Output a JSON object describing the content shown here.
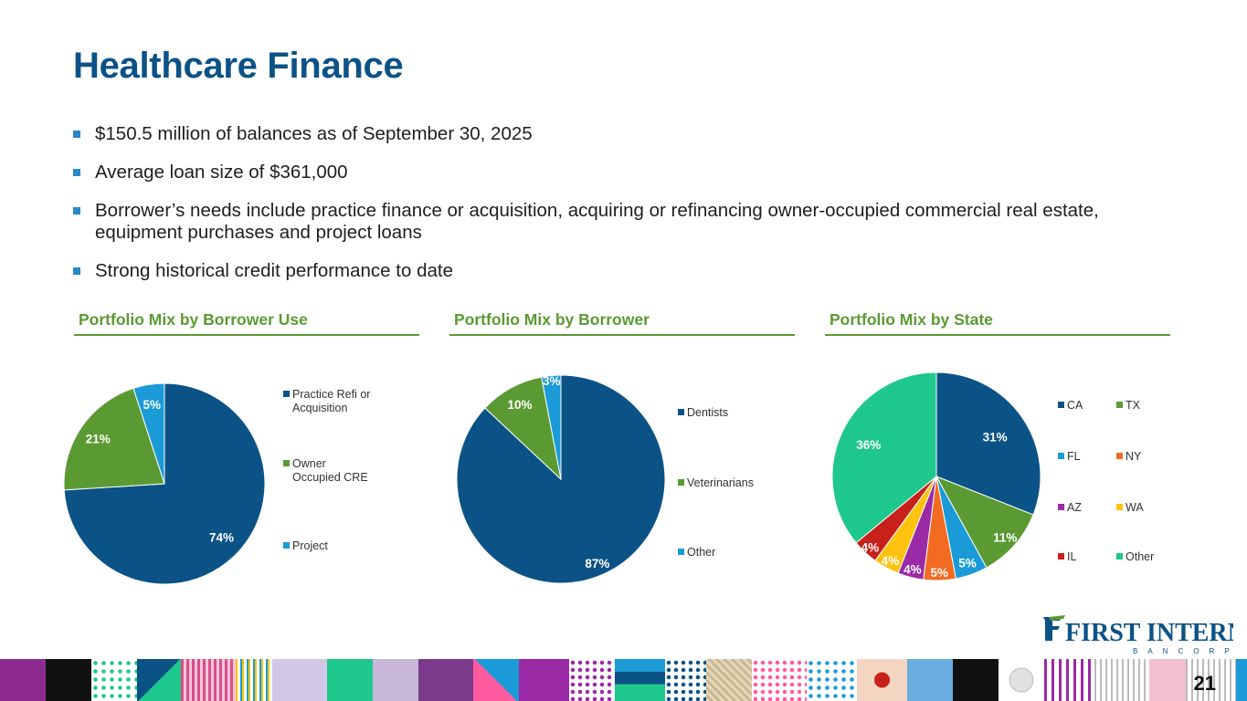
{
  "title": "Healthcare Finance",
  "bullets": [
    "$150.5 million of balances as of September 30, 2025",
    "Average loan size of $361,000",
    "Borrower’s needs include practice finance or acquisition, acquiring or refinancing owner-occupied commercial real estate, equipment purchases and project loans",
    "Strong historical credit performance to date"
  ],
  "sections": [
    "Portfolio Mix by Borrower Use",
    "Portfolio Mix by Borrower",
    "Portfolio Mix by State"
  ],
  "logo": {
    "text": "FIRST INTERNET",
    "subtext": "BANCORP"
  },
  "page_number": "21",
  "colors": {
    "navy": "#0b5286",
    "green": "#5b9a32",
    "blue": "#1a9bd7",
    "orange": "#f26b21",
    "purple": "#9b2aa6",
    "yellow": "#ffc20e",
    "red": "#c8201a",
    "teal": "#1ec88c"
  },
  "chart_data": [
    {
      "type": "pie",
      "title": "Portfolio Mix by Borrower Use",
      "categories": [
        "Practice Refi or Acquisition",
        "Owner Occupied CRE",
        "Project"
      ],
      "values": [
        74,
        21,
        5
      ],
      "labels": [
        "74%",
        "21%",
        "5%"
      ],
      "colors": [
        "#0b5286",
        "#5b9a32",
        "#1a9bd7"
      ],
      "legend": "right"
    },
    {
      "type": "pie",
      "title": "Portfolio Mix by Borrower",
      "categories": [
        "Dentists",
        "Veterinarians",
        "Other"
      ],
      "values": [
        87,
        10,
        3
      ],
      "labels": [
        "87%",
        "10%",
        "3%"
      ],
      "colors": [
        "#0b5286",
        "#5b9a32",
        "#1a9bd7"
      ],
      "legend": "right"
    },
    {
      "type": "pie",
      "title": "Portfolio Mix by State",
      "categories": [
        "CA",
        "TX",
        "FL",
        "NY",
        "AZ",
        "WA",
        "IL",
        "Other"
      ],
      "values": [
        31,
        11,
        5,
        5,
        4,
        4,
        4,
        36
      ],
      "labels": [
        "31%",
        "11%",
        "5%",
        "5%",
        "4%",
        "4%",
        "4%",
        "36%"
      ],
      "colors": [
        "#0b5286",
        "#5b9a32",
        "#1a9bd7",
        "#f26b21",
        "#9b2aa6",
        "#ffc20e",
        "#c8201a",
        "#1ec88c"
      ],
      "legend": "right"
    }
  ]
}
